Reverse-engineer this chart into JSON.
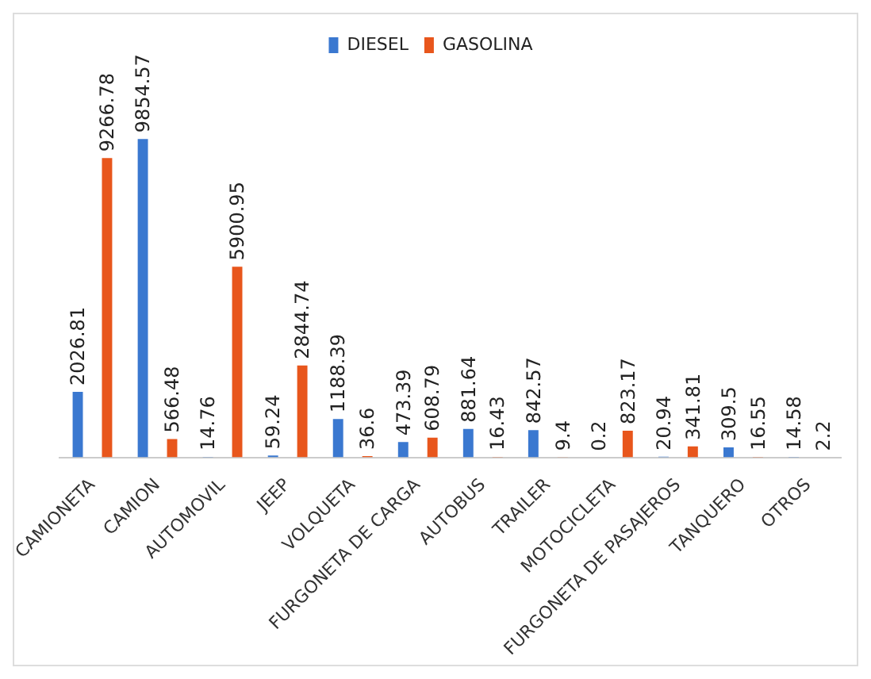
{
  "chart_data": {
    "type": "bar",
    "categories": [
      "CAMIONETA",
      "CAMION",
      "AUTOMOVIL",
      "JEEP",
      "VOLQUETA",
      "FURGONETA DE CARGA",
      "AUTOBUS",
      "TRAILER",
      "MOTOCICLETA",
      "FURGONETA DE PASAJEROS",
      "TANQUERO",
      "OTROS"
    ],
    "series": [
      {
        "name": "DIESEL",
        "color": "#3a78d0",
        "values": [
          2026.81,
          9854.57,
          14.76,
          59.24,
          1188.39,
          473.39,
          881.64,
          842.57,
          0.2,
          20.94,
          309.5,
          14.58
        ]
      },
      {
        "name": "GASOLINA",
        "color": "#e8561c",
        "values": [
          9266.78,
          566.48,
          5900.95,
          2844.74,
          36.6,
          608.79,
          16.43,
          9.4,
          823.17,
          341.81,
          16.55,
          2.2
        ]
      }
    ],
    "data_labels": true,
    "legend": "top",
    "grid": false
  }
}
